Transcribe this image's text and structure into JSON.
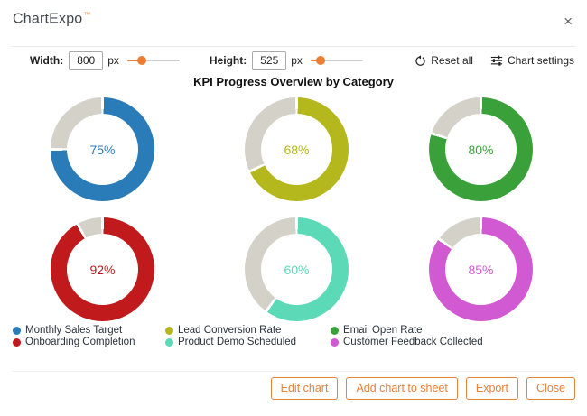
{
  "window": {
    "title": "ChartExpo",
    "trademark": "™",
    "close_icon": "×"
  },
  "toolbar": {
    "width_label": "Width:",
    "width_value": "800",
    "width_unit": "px",
    "width_slider_pos": 27,
    "height_label": "Height:",
    "height_value": "525",
    "height_unit": "px",
    "height_slider_pos": 19,
    "reset_label": "Reset all",
    "reset_icon": "rotate-ccw-icon",
    "settings_label": "Chart settings",
    "settings_icon": "sliders-icon"
  },
  "chart_data": {
    "type": "pie",
    "subtype": "donut_multiples",
    "title": "KPI Progress Overview by Category",
    "categories": [
      "Monthly Sales Target",
      "Lead Conversion Rate",
      "Email Open Rate",
      "Onboarding Completion",
      "Product Demo Scheduled",
      "Customer Feedback Collected"
    ],
    "values": [
      75,
      68,
      80,
      92,
      60,
      85
    ],
    "unit": "%",
    "colors": [
      "#2a7cb8",
      "#b4b81d",
      "#3aa13a",
      "#c11a1c",
      "#5cdab8",
      "#d159d1"
    ],
    "remainder_color": "#d4d1c9",
    "value_labels_inside": true,
    "grid_layout": "3 columns x 2 rows",
    "legend_position": "bottom-left",
    "start_angle_deg": 0,
    "direction": "clockwise"
  },
  "footer": {
    "buttons": [
      "Edit chart",
      "Add chart to sheet",
      "Export",
      "Close"
    ]
  }
}
